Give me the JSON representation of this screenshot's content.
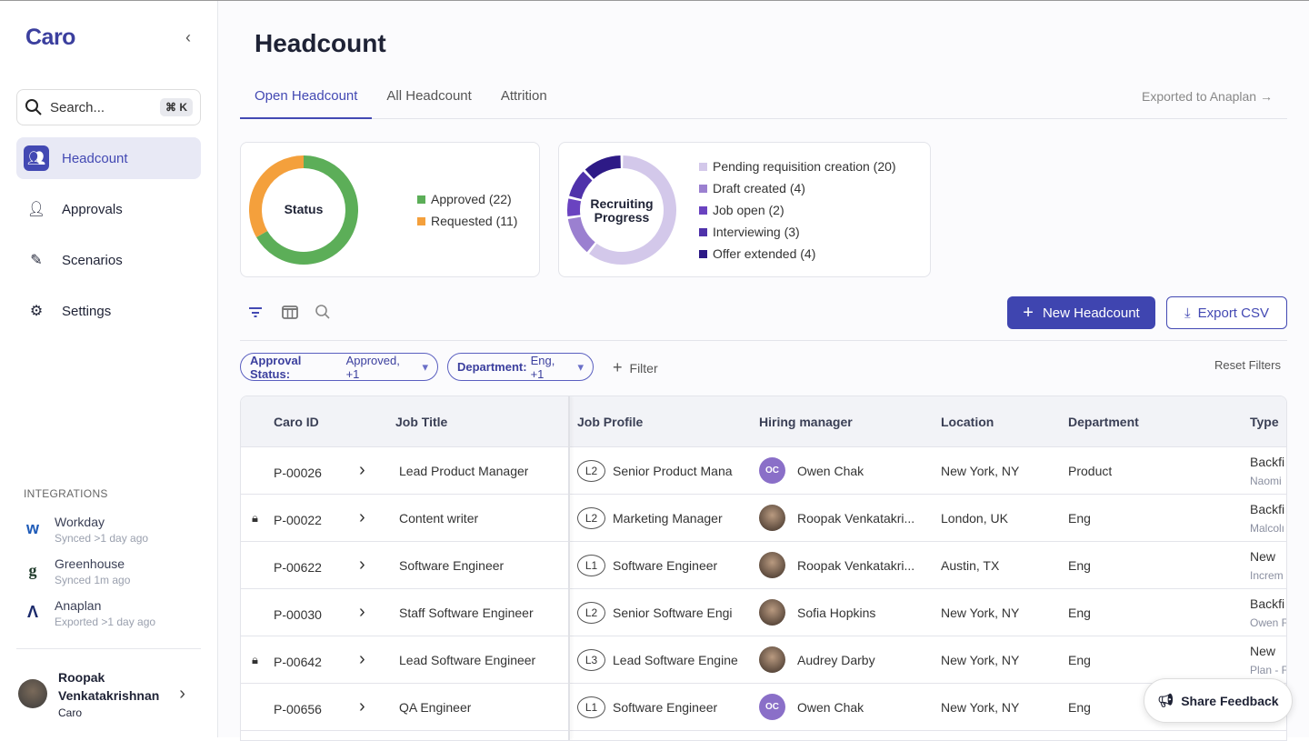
{
  "app": {
    "logo": "Caro",
    "search_placeholder": "Search...",
    "search_shortcut": "⌘ K"
  },
  "nav": [
    {
      "label": "Headcount",
      "icon": "people-icon",
      "active": true
    },
    {
      "label": "Approvals",
      "icon": "user-check-icon"
    },
    {
      "label": "Scenarios",
      "icon": "pen-icon"
    },
    {
      "label": "Settings",
      "icon": "gear-icon"
    }
  ],
  "integrations": {
    "heading": "INTEGRATIONS",
    "items": [
      {
        "name": "Workday",
        "status": "Synced >1 day ago"
      },
      {
        "name": "Greenhouse",
        "status": "Synced 1m ago"
      },
      {
        "name": "Anaplan",
        "status": "Exported >1 day ago"
      }
    ]
  },
  "user": {
    "first": "Roopak",
    "last": "Venkatakrishnan",
    "org": "Caro"
  },
  "page": {
    "title": "Headcount",
    "tabs": [
      "Open Headcount",
      "All Headcount",
      "Attrition"
    ],
    "exported": "Exported to Anaplan →"
  },
  "chart_data": [
    {
      "type": "pie",
      "title": "Status",
      "categories": [
        "Approved (22)",
        "Requested (11)"
      ],
      "values": [
        22,
        11
      ],
      "colors": [
        "#5cae58",
        "#f4a03c"
      ]
    },
    {
      "type": "pie",
      "title": "Recruiting Progress",
      "categories": [
        "Pending requisition creation (20)",
        "Draft created (4)",
        "Job open (2)",
        "Interviewing (3)",
        "Offer extended (4)"
      ],
      "values": [
        20,
        4,
        2,
        3,
        4
      ],
      "colors": [
        "#d3c8ea",
        "#9b80d0",
        "#6a43c0",
        "#4f32aa",
        "#2d1a86"
      ]
    }
  ],
  "toolbar": {
    "new": "New Headcount",
    "export": "Export CSV",
    "filter_add": "Filter",
    "reset": "Reset Filters"
  },
  "filters": [
    {
      "label": "Approval Status:",
      "value": "Approved, +1"
    },
    {
      "label": "Department:",
      "value": "Eng, +1"
    }
  ],
  "table": {
    "headers": [
      "Caro ID",
      "Job Title",
      "Job Profile",
      "Hiring manager",
      "Location",
      "Department",
      "Type"
    ],
    "rows": [
      {
        "id": "P-00026",
        "locked": false,
        "title": "Lead Product Manager",
        "level": "L2",
        "profile": "Senior Product Mana",
        "mgr": "Owen Chak",
        "initials": "OC",
        "loc": "New York, NY",
        "dept": "Product",
        "type": "Backfi",
        "type_sub": "Naomi"
      },
      {
        "id": "P-00022",
        "locked": true,
        "title": "Content writer",
        "level": "L2",
        "profile": "Marketing Manager",
        "mgr": "Roopak Venkatakri...",
        "initials": "",
        "loc": "London, UK",
        "dept": "Eng",
        "type": "Backfi",
        "type_sub": "Malcolı"
      },
      {
        "id": "P-00622",
        "locked": false,
        "title": "Software Engineer",
        "level": "L1",
        "profile": "Software Engineer",
        "mgr": "Roopak Venkatakri...",
        "initials": "",
        "loc": "Austin, TX",
        "dept": "Eng",
        "type": "New",
        "type_sub": "Increm"
      },
      {
        "id": "P-00030",
        "locked": false,
        "title": "Staff Software Engineer",
        "level": "L2",
        "profile": "Senior Software Engi",
        "mgr": "Sofia Hopkins",
        "initials": "",
        "loc": "New York, NY",
        "dept": "Eng",
        "type": "Backfi",
        "type_sub": "Owen F"
      },
      {
        "id": "P-00642",
        "locked": true,
        "title": "Lead Software Engineer",
        "level": "L3",
        "profile": "Lead Software Engine",
        "mgr": "Audrey Darby",
        "initials": "",
        "loc": "New York, NY",
        "dept": "Eng",
        "type": "New",
        "type_sub": "Plan - F"
      },
      {
        "id": "P-00656",
        "locked": false,
        "title": "QA Engineer",
        "level": "L1",
        "profile": "Software Engineer",
        "mgr": "Owen Chak",
        "initials": "OC",
        "loc": "New York, NY",
        "dept": "Eng",
        "type": "",
        "type_sub": ""
      }
    ]
  },
  "feedback": "Share Feedback"
}
